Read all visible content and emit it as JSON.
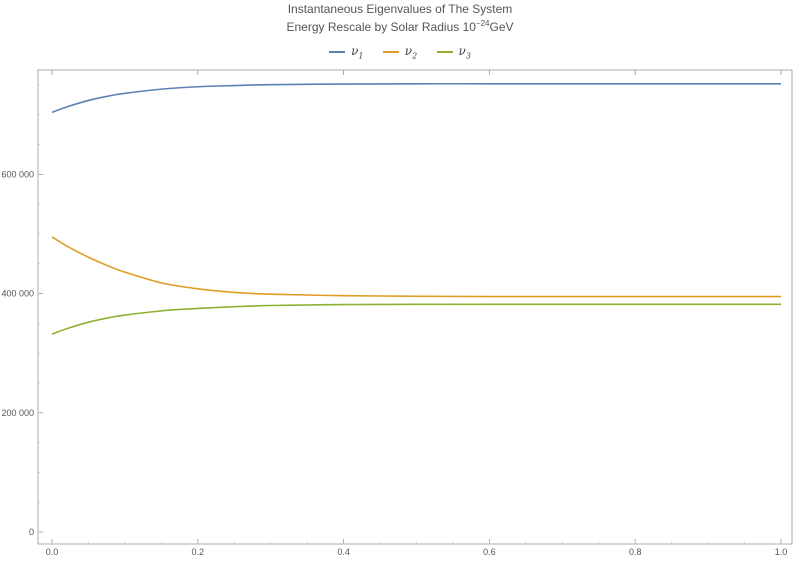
{
  "title": {
    "line1": "Instantaneous Eigenvalues of The System",
    "line2_prefix": "Energy Rescale by Solar Radius 10",
    "line2_exp": "−24",
    "line2_suffix": "GeV"
  },
  "legend": [
    {
      "symbol": "ν",
      "sub": "1",
      "color": "#5E81B5"
    },
    {
      "symbol": "ν",
      "sub": "2",
      "color": "#E19C24"
    },
    {
      "symbol": "ν",
      "sub": "3",
      "color": "#8FB032"
    }
  ],
  "chart_data": {
    "type": "line",
    "title": "Instantaneous Eigenvalues of The System",
    "subtitle": "Energy Rescale by Solar Radius 10^-24 GeV",
    "xlim": [
      0,
      1
    ],
    "ylim": [
      0,
      760000
    ],
    "x_ticks": [
      0.0,
      0.2,
      0.4,
      0.6,
      0.8,
      1.0
    ],
    "x_tick_labels": [
      "0.0",
      "0.2",
      "0.4",
      "0.6",
      "0.8",
      "1.0"
    ],
    "y_ticks": [
      0,
      200000,
      400000,
      600000
    ],
    "y_tick_labels": [
      "0",
      "200 000",
      "400 000",
      "600 000"
    ],
    "legend_position": "top-center",
    "grid": false,
    "x": [
      0.0,
      0.02,
      0.05,
      0.08,
      0.1,
      0.15,
      0.2,
      0.25,
      0.3,
      0.4,
      0.5,
      0.6,
      0.7,
      0.8,
      0.9,
      1.0
    ],
    "series": [
      {
        "name": "ν1",
        "color": "#5E81B5",
        "values": [
          704000,
          713000,
          724000,
          732000,
          736000,
          743000,
          747000,
          749000,
          750500,
          751500,
          752000,
          752000,
          752000,
          752000,
          752000,
          752000
        ]
      },
      {
        "name": "ν2",
        "color": "#E19C24",
        "values": [
          495000,
          480000,
          461000,
          445000,
          436000,
          418000,
          408000,
          402000,
          399000,
          396500,
          395500,
          395000,
          395000,
          395000,
          395000,
          395000
        ]
      },
      {
        "name": "ν3",
        "color": "#8FB032",
        "values": [
          332000,
          341000,
          352000,
          360000,
          364000,
          371000,
          375000,
          378000,
          380000,
          381500,
          382000,
          382000,
          382000,
          382000,
          382000,
          382000
        ]
      }
    ]
  }
}
